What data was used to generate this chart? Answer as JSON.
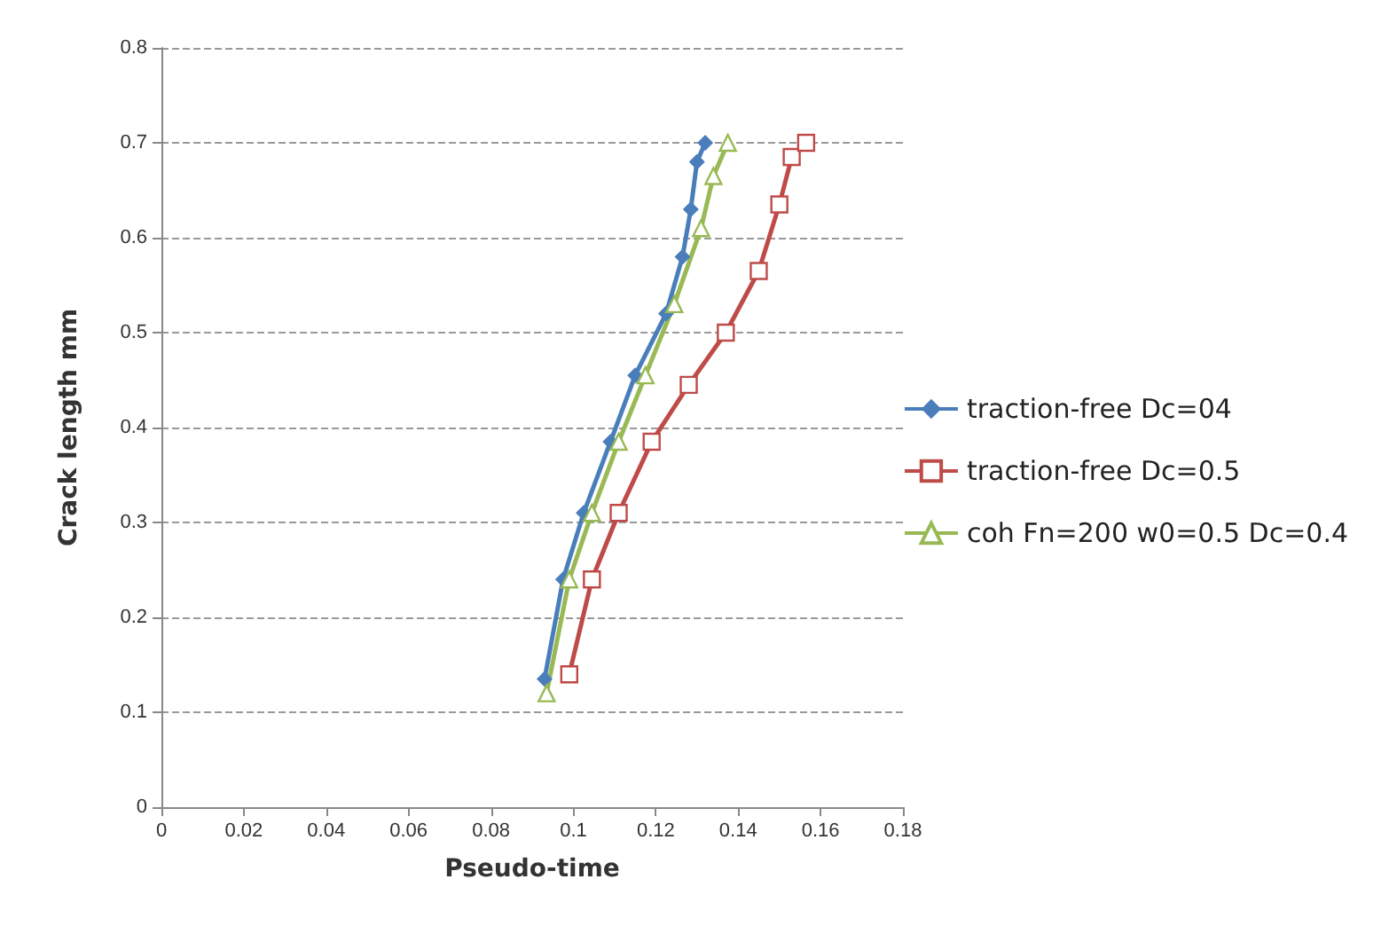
{
  "chart_data": {
    "type": "line",
    "xlabel": "Pseudo-time",
    "ylabel": "Crack length mm",
    "xlim": [
      0,
      0.18
    ],
    "ylim": [
      0,
      0.8
    ],
    "xticks": [
      0,
      0.02,
      0.04,
      0.06,
      0.08,
      0.1,
      0.12,
      0.14,
      0.16,
      0.18
    ],
    "yticks": [
      0,
      0.1,
      0.2,
      0.3,
      0.4,
      0.5,
      0.6,
      0.7,
      0.8
    ],
    "grid": "y",
    "legend": "right",
    "series": [
      {
        "name": "traction-free Dc=04",
        "color": "#4a7ebb",
        "marker": "diamond",
        "x": [
          0.093,
          0.0975,
          0.1025,
          0.109,
          0.115,
          0.1225,
          0.1265,
          0.1285,
          0.13,
          0.132
        ],
        "values": [
          0.135,
          0.24,
          0.31,
          0.385,
          0.455,
          0.52,
          0.58,
          0.63,
          0.68,
          0.7
        ]
      },
      {
        "name": "traction-free Dc=0.5",
        "color": "#be4b48",
        "marker": "square",
        "x": [
          0.099,
          0.1045,
          0.111,
          0.119,
          0.128,
          0.137,
          0.145,
          0.15,
          0.153,
          0.1565
        ],
        "values": [
          0.14,
          0.24,
          0.31,
          0.385,
          0.445,
          0.5,
          0.565,
          0.635,
          0.685,
          0.7
        ]
      },
      {
        "name": "coh Fn=200 w0=0.5 Dc=0.4",
        "color": "#98b954",
        "marker": "triangle",
        "x": [
          0.0935,
          0.099,
          0.1045,
          0.111,
          0.1175,
          0.1245,
          0.131,
          0.134,
          0.1375
        ],
        "values": [
          0.12,
          0.24,
          0.31,
          0.385,
          0.455,
          0.53,
          0.61,
          0.665,
          0.7
        ]
      }
    ]
  }
}
